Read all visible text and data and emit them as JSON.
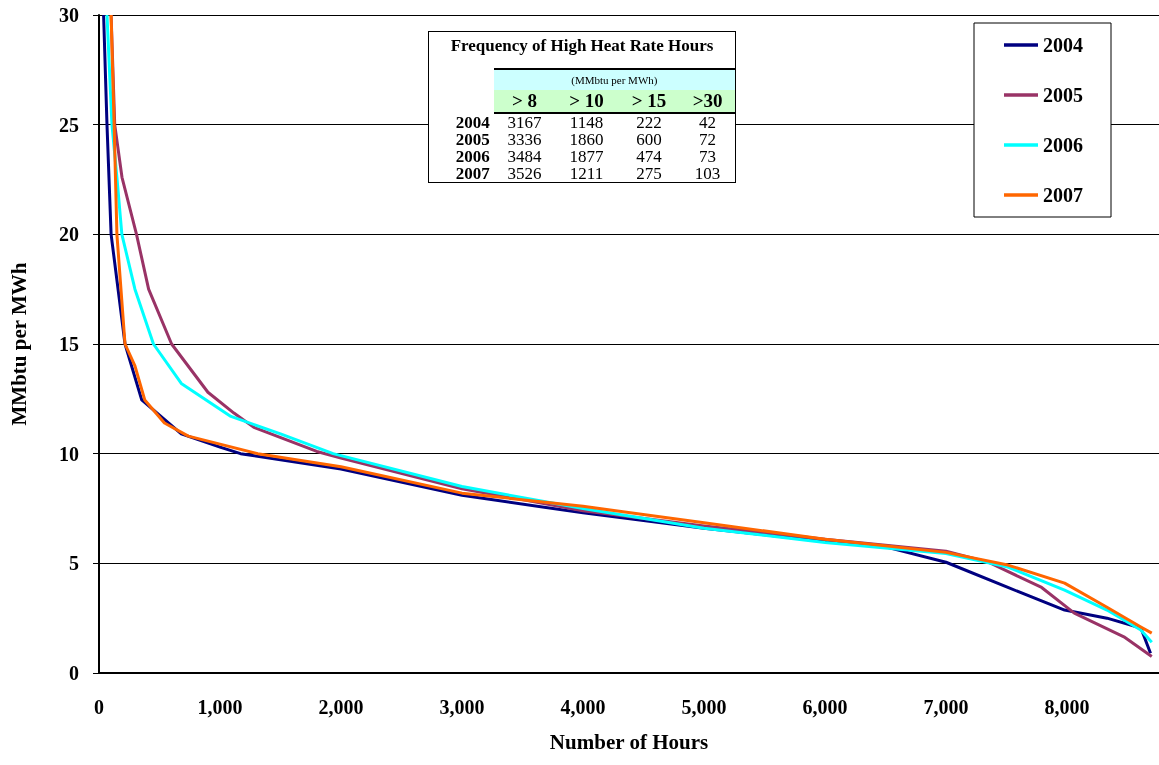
{
  "chart_data": {
    "type": "line",
    "xlabel": "Number of Hours",
    "ylabel": "MMbtu per MWh",
    "xlim": [
      0,
      8760
    ],
    "xticks": [
      {
        "value": 0,
        "label": "0"
      },
      {
        "value": 1000,
        "label": "1,000"
      },
      {
        "value": 2000,
        "label": "2,000"
      },
      {
        "value": 3000,
        "label": "3,000"
      },
      {
        "value": 4000,
        "label": "4,000"
      },
      {
        "value": 5000,
        "label": "5,000"
      },
      {
        "value": 6000,
        "label": "6,000"
      },
      {
        "value": 7000,
        "label": "7,000"
      },
      {
        "value": 8000,
        "label": "8,000"
      }
    ],
    "ylim": [
      0,
      30
    ],
    "yticks": [
      0,
      5,
      10,
      15,
      20,
      25,
      30
    ],
    "grid": "y",
    "legend": "top right",
    "annotations": [
      "Frequency of High Heat Rate Hours",
      "(MMbtu per MWh)",
      "\t> 8\t> 10\t> 15\t>30",
      "2004\t3167\t1148\t222\t42",
      "2005\t3336\t1860\t600\t72",
      "2006\t3484\t1877\t474\t73",
      "2007\t3526\t1211\t275\t103"
    ],
    "series": [
      {
        "name": "2004",
        "color": "#000080",
        "x": [
          38,
          66,
          100,
          215,
          353,
          680,
          1000,
          1170,
          2000,
          3000,
          4000,
          5000,
          6000,
          6500,
          7000,
          7511,
          7980,
          8330,
          8610,
          8690
        ],
        "values": [
          30,
          25,
          20,
          15,
          12.45,
          10.9,
          10.3,
          10,
          9.3,
          8.1,
          7.3,
          6.6,
          6,
          5.75,
          5.05,
          3.9,
          2.87,
          2.5,
          2.05,
          0.9
        ]
      },
      {
        "name": "2005",
        "color": "#993366",
        "x": [
          100,
          130,
          190,
          310,
          410,
          600,
          900,
          1115,
          1280,
          1800,
          2000,
          3000,
          4000,
          5000,
          6000,
          7000,
          7350,
          7790,
          8060,
          8470,
          8700
        ],
        "values": [
          30,
          25,
          22.6,
          20,
          17.5,
          15,
          12.8,
          11.85,
          11.2,
          10.1,
          9.8,
          8.4,
          7.4,
          6.7,
          6.1,
          5.55,
          5.05,
          3.9,
          2.73,
          1.65,
          0.75
        ]
      },
      {
        "name": "2006",
        "color": "#00ffff",
        "x": [
          66,
          107,
          148,
          189,
          297,
          450,
          680,
          1090,
          1500,
          1935,
          3000,
          4000,
          5000,
          6000,
          7000,
          7511,
          7980,
          8330,
          8610,
          8700
        ],
        "values": [
          30,
          25,
          22.6,
          20,
          17.5,
          15,
          13.2,
          11.7,
          10.9,
          10,
          8.5,
          7.5,
          6.6,
          5.95,
          5.45,
          4.83,
          3.78,
          2.87,
          1.96,
          1.4
        ]
      },
      {
        "name": "2007",
        "color": "#ff6600",
        "x": [
          100,
          125,
          148,
          215,
          297,
          378,
          541,
          738,
          1312,
          2000,
          3000,
          4000,
          5000,
          6000,
          7000,
          7511,
          7980,
          8330,
          8610,
          8700
        ],
        "values": [
          30,
          25,
          20,
          15,
          14,
          12.45,
          11.4,
          10.8,
          10,
          9.4,
          8.2,
          7.6,
          6.85,
          6.1,
          5.5,
          4.92,
          4.1,
          3,
          2.1,
          1.82
        ]
      }
    ]
  }
}
